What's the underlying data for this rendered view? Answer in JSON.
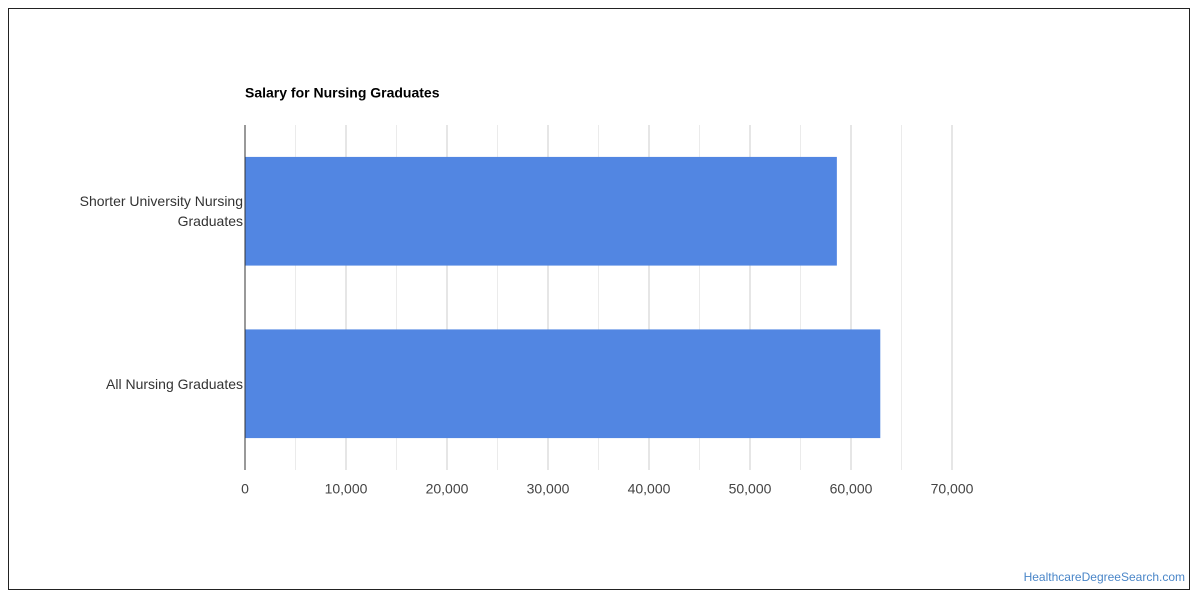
{
  "chart_data": {
    "type": "bar",
    "orientation": "horizontal",
    "title": "Salary for Nursing Graduates",
    "categories": [
      "Shorter University Nursing Graduates",
      "All Nursing Graduates"
    ],
    "values": [
      58600,
      62900
    ],
    "color": "#5286e2",
    "xlim": [
      0,
      70000
    ],
    "xticks": [
      0,
      {
        "value": 10000,
        "label": "10,000"
      },
      {
        "value": 20000,
        "label": "20,000"
      },
      {
        "value": 30000,
        "label": "30,000"
      },
      {
        "value": 40000,
        "label": "40,000"
      },
      {
        "value": 50000,
        "label": "50,000"
      },
      {
        "value": 60000,
        "label": "60,000"
      },
      {
        "value": 70000,
        "label": "70,000"
      }
    ],
    "grid": true,
    "source": "HealthcareDegreeSearch.com"
  }
}
